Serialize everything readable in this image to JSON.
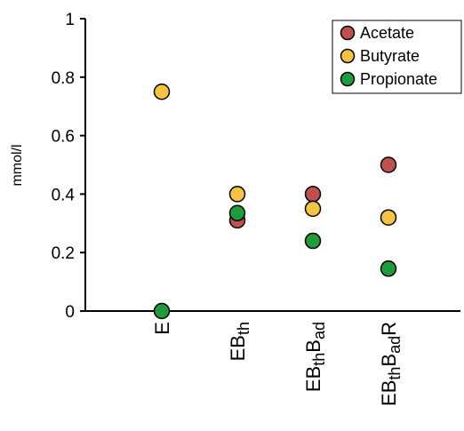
{
  "chart_data": {
    "type": "scatter",
    "title": "",
    "xlabel": "",
    "ylabel": "mmol/l",
    "ylim": [
      0,
      1
    ],
    "yticks": [
      0,
      0.2,
      0.4,
      0.6,
      0.8,
      1
    ],
    "ytick_labels": [
      "0",
      "0.2",
      "0.4",
      "0.6",
      "0.8",
      "1"
    ],
    "grid": false,
    "legend_position": "top-right",
    "categories": [
      {
        "id": "E",
        "parts": [
          {
            "t": "E",
            "sub": false
          }
        ]
      },
      {
        "id": "EBth",
        "parts": [
          {
            "t": "EB",
            "sub": false
          },
          {
            "t": "th",
            "sub": true
          }
        ]
      },
      {
        "id": "EBthBad",
        "parts": [
          {
            "t": "EB",
            "sub": false
          },
          {
            "t": "th",
            "sub": true
          },
          {
            "t": "B",
            "sub": false
          },
          {
            "t": "ad",
            "sub": true
          }
        ]
      },
      {
        "id": "EBthBadR",
        "parts": [
          {
            "t": "EB",
            "sub": false
          },
          {
            "t": "th",
            "sub": true
          },
          {
            "t": "B",
            "sub": false
          },
          {
            "t": "ad",
            "sub": true
          },
          {
            "t": "R",
            "sub": false
          }
        ]
      }
    ],
    "series": [
      {
        "name": "Acetate",
        "color": "#c0504d",
        "values": [
          null,
          0.31,
          0.4,
          0.5
        ]
      },
      {
        "name": "Butyrate",
        "color": "#f5c342",
        "values": [
          0.75,
          0.4,
          0.35,
          0.32
        ]
      },
      {
        "name": "Propionate",
        "color": "#1e9b3a",
        "values": [
          0.0,
          0.335,
          0.24,
          0.145
        ]
      }
    ]
  }
}
